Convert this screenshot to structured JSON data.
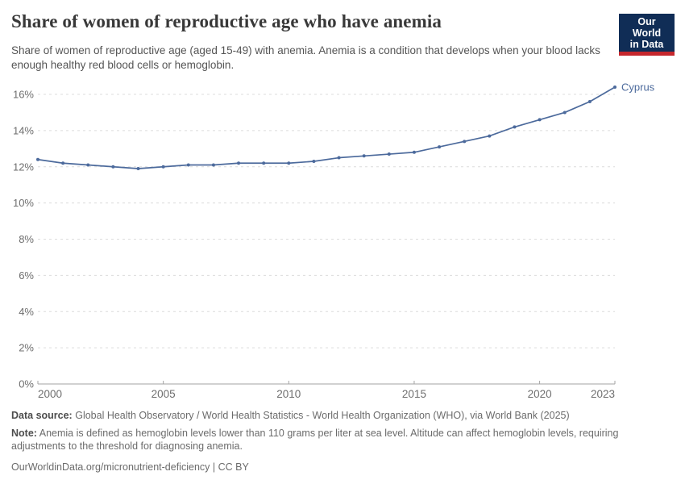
{
  "header": {
    "title": "Share of women of reproductive age who have anemia",
    "subtitle": "Share of women of reproductive age (aged 15-49) with anemia. Anemia is a condition that develops when your blood lacks enough healthy red blood cells or hemoglobin.",
    "logo": {
      "line1": "Our World",
      "line2": "in Data",
      "bg_color": "#102d56",
      "stripe_color": "#c5262c"
    }
  },
  "chart_data": {
    "type": "line",
    "title": "Share of women of reproductive age who have anemia",
    "x": [
      2000,
      2001,
      2002,
      2003,
      2004,
      2005,
      2006,
      2007,
      2008,
      2009,
      2010,
      2011,
      2012,
      2013,
      2014,
      2015,
      2016,
      2017,
      2018,
      2019,
      2020,
      2021,
      2022,
      2023
    ],
    "series": [
      {
        "name": "Cyprus",
        "color": "#4c6a9c",
        "values": [
          12.4,
          12.2,
          12.1,
          12.0,
          11.9,
          12.0,
          12.1,
          12.1,
          12.2,
          12.2,
          12.2,
          12.3,
          12.5,
          12.6,
          12.7,
          12.8,
          13.1,
          13.4,
          13.7,
          14.2,
          14.6,
          15.0,
          15.6,
          16.4
        ]
      }
    ],
    "xlabel": "",
    "ylabel": "",
    "ylim": [
      0,
      16
    ],
    "yticks": [
      0,
      2,
      4,
      6,
      8,
      10,
      12,
      14,
      16
    ],
    "ytick_suffix": "%",
    "xticks": [
      2000,
      2005,
      2010,
      2015,
      2020,
      2023
    ],
    "grid": "horizontal-dashed",
    "legend_position": "end-of-line label",
    "colors": {
      "grid": "#dcdcdc",
      "axis": "#a3a3a3",
      "tick_label": "#6e6e6e"
    }
  },
  "footer": {
    "data_source_label": "Data source:",
    "data_source_text": "Global Health Observatory / World Health Statistics - World Health Organization (WHO), via World Bank (2025)",
    "note_label": "Note:",
    "note_text": "Anemia is defined as hemoglobin levels lower than 110 grams per liter at sea level. Altitude can affect hemoglobin levels, requiring adjustments to the threshold for diagnosing anemia.",
    "url_line": "OurWorldinData.org/micronutrient-deficiency | CC BY"
  }
}
